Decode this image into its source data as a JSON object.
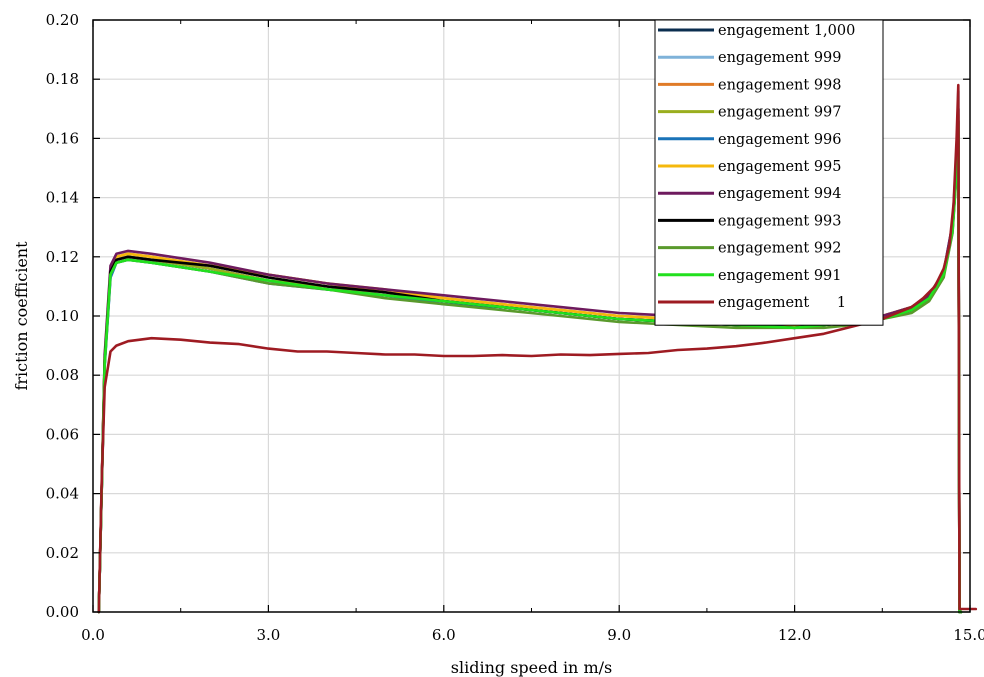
{
  "chart_data": {
    "type": "line",
    "xlabel": "sliding speed in m/s",
    "ylabel": "friction coefficient",
    "xlim": [
      0,
      15
    ],
    "ylim": [
      0,
      0.2
    ],
    "xticks": [
      0,
      3,
      6,
      9,
      12,
      15
    ],
    "yticks": [
      0,
      0.02,
      0.04,
      0.06,
      0.08,
      0.1,
      0.12,
      0.14,
      0.16,
      0.18,
      0.2
    ],
    "xtick_labels": [
      "0.0",
      "3.0",
      "6.0",
      "9.0",
      "12.0",
      "15.0"
    ],
    "ytick_labels": [
      "0.00",
      "0.02",
      "0.04",
      "0.06",
      "0.08",
      "0.10",
      "0.12",
      "0.14",
      "0.16",
      "0.18",
      "0.20"
    ],
    "grid": true,
    "legend_position": "top-right",
    "series": [
      {
        "name": "engagement 1,000",
        "color": "#0b2e4f",
        "x": [
          0.1,
          0.2,
          0.3,
          0.4,
          0.6,
          1,
          2,
          3,
          4,
          5,
          6,
          7,
          8,
          9,
          10,
          11,
          12,
          12.5,
          13,
          13.5,
          14,
          14.3,
          14.55,
          14.7,
          14.78,
          14.8,
          14.82,
          14.85
        ],
        "y": [
          0,
          0.085,
          0.114,
          0.119,
          0.12,
          0.119,
          0.116,
          0.112,
          0.109,
          0.107,
          0.105,
          0.103,
          0.101,
          0.099,
          0.098,
          0.097,
          0.097,
          0.097,
          0.098,
          0.1,
          0.103,
          0.107,
          0.115,
          0.13,
          0.155,
          0.17,
          0,
          0
        ]
      },
      {
        "name": "engagement 999",
        "color": "#7fb2d9",
        "x": [
          0.1,
          0.2,
          0.3,
          0.4,
          0.6,
          1,
          2,
          3,
          4,
          5,
          6,
          7,
          8,
          9,
          10,
          11,
          12,
          12.5,
          13,
          13.5,
          14,
          14.3,
          14.55,
          14.7,
          14.78,
          14.8,
          14.82,
          14.85
        ],
        "y": [
          0,
          0.084,
          0.113,
          0.118,
          0.119,
          0.118,
          0.115,
          0.112,
          0.109,
          0.107,
          0.105,
          0.103,
          0.101,
          0.099,
          0.098,
          0.097,
          0.096,
          0.097,
          0.098,
          0.099,
          0.102,
          0.106,
          0.114,
          0.128,
          0.152,
          0.166,
          0,
          0
        ]
      },
      {
        "name": "engagement 998",
        "color": "#e07b28",
        "x": [
          0.1,
          0.2,
          0.3,
          0.4,
          0.6,
          1,
          2,
          3,
          4,
          5,
          6,
          7,
          8,
          9,
          10,
          11,
          12,
          12.5,
          13,
          13.5,
          14,
          14.3,
          14.55,
          14.7,
          14.78,
          14.8,
          14.82,
          14.85
        ],
        "y": [
          0,
          0.086,
          0.116,
          0.12,
          0.121,
          0.12,
          0.117,
          0.114,
          0.111,
          0.108,
          0.106,
          0.104,
          0.102,
          0.1,
          0.099,
          0.098,
          0.097,
          0.098,
          0.099,
          0.1,
          0.103,
          0.107,
          0.115,
          0.13,
          0.153,
          0.168,
          0,
          0
        ]
      },
      {
        "name": "engagement 997",
        "color": "#9aae1e",
        "x": [
          0.1,
          0.2,
          0.3,
          0.4,
          0.6,
          1,
          2,
          3,
          4,
          5,
          6,
          7,
          8,
          9,
          10,
          11,
          12,
          12.5,
          13,
          13.5,
          14,
          14.3,
          14.55,
          14.7,
          14.78,
          14.8,
          14.82,
          14.85
        ],
        "y": [
          0,
          0.084,
          0.114,
          0.119,
          0.12,
          0.119,
          0.116,
          0.112,
          0.11,
          0.107,
          0.105,
          0.103,
          0.101,
          0.099,
          0.098,
          0.097,
          0.096,
          0.097,
          0.098,
          0.1,
          0.102,
          0.106,
          0.114,
          0.129,
          0.152,
          0.165,
          0,
          0
        ]
      },
      {
        "name": "engagement 996",
        "color": "#1a73b8",
        "x": [
          0.1,
          0.2,
          0.3,
          0.4,
          0.6,
          1,
          2,
          3,
          4,
          5,
          6,
          7,
          8,
          9,
          10,
          11,
          12,
          12.5,
          13,
          13.5,
          14,
          14.3,
          14.55,
          14.7,
          14.78,
          14.8,
          14.82,
          14.85
        ],
        "y": [
          0,
          0.083,
          0.113,
          0.118,
          0.119,
          0.118,
          0.115,
          0.111,
          0.109,
          0.107,
          0.104,
          0.103,
          0.101,
          0.099,
          0.098,
          0.097,
          0.096,
          0.097,
          0.098,
          0.099,
          0.102,
          0.106,
          0.115,
          0.131,
          0.158,
          0.176,
          0,
          0
        ]
      },
      {
        "name": "engagement 995",
        "color": "#f5b80c",
        "x": [
          0.1,
          0.2,
          0.3,
          0.4,
          0.6,
          1,
          2,
          3,
          4,
          5,
          6,
          7,
          8,
          9,
          10,
          11,
          12,
          12.5,
          13,
          13.5,
          14,
          14.3,
          14.55,
          14.7,
          14.78,
          14.8,
          14.82,
          14.85
        ],
        "y": [
          0,
          0.086,
          0.116,
          0.12,
          0.121,
          0.12,
          0.117,
          0.114,
          0.111,
          0.109,
          0.106,
          0.104,
          0.102,
          0.1,
          0.099,
          0.098,
          0.097,
          0.098,
          0.099,
          0.1,
          0.103,
          0.107,
          0.115,
          0.13,
          0.154,
          0.168,
          0,
          0
        ]
      },
      {
        "name": "engagement 994",
        "color": "#6e1a5e",
        "x": [
          0.1,
          0.2,
          0.3,
          0.4,
          0.6,
          1,
          2,
          3,
          4,
          5,
          6,
          7,
          8,
          9,
          10,
          11,
          12,
          12.5,
          13,
          13.5,
          14,
          14.3,
          14.55,
          14.7,
          14.78,
          14.8,
          14.82,
          14.85
        ],
        "y": [
          0,
          0.087,
          0.117,
          0.121,
          0.122,
          0.121,
          0.118,
          0.114,
          0.111,
          0.109,
          0.107,
          0.105,
          0.103,
          0.101,
          0.1,
          0.099,
          0.098,
          0.098,
          0.099,
          0.1,
          0.103,
          0.107,
          0.115,
          0.131,
          0.155,
          0.17,
          0,
          0
        ]
      },
      {
        "name": "engagement 993",
        "color": "#000000",
        "x": [
          0.1,
          0.2,
          0.3,
          0.4,
          0.6,
          1,
          2,
          3,
          4,
          5,
          6,
          7,
          8,
          9,
          10,
          11,
          12,
          12.5,
          13,
          13.5,
          14,
          14.3,
          14.55,
          14.7,
          14.78,
          14.8,
          14.82,
          14.85
        ],
        "y": [
          0,
          0.085,
          0.115,
          0.119,
          0.12,
          0.119,
          0.117,
          0.113,
          0.11,
          0.108,
          0.105,
          0.103,
          0.101,
          0.099,
          0.098,
          0.097,
          0.096,
          0.097,
          0.098,
          0.099,
          0.102,
          0.106,
          0.114,
          0.129,
          0.152,
          0.166,
          0,
          0
        ]
      },
      {
        "name": "engagement 992",
        "color": "#5a9a2c",
        "x": [
          0.1,
          0.2,
          0.3,
          0.4,
          0.6,
          1,
          2,
          3,
          4,
          5,
          6,
          7,
          8,
          9,
          10,
          11,
          12,
          12.5,
          13,
          13.5,
          14,
          14.3,
          14.55,
          14.7,
          14.78,
          14.8,
          14.82,
          14.85
        ],
        "y": [
          0,
          0.084,
          0.114,
          0.118,
          0.119,
          0.118,
          0.115,
          0.111,
          0.109,
          0.106,
          0.104,
          0.102,
          0.1,
          0.098,
          0.097,
          0.096,
          0.096,
          0.096,
          0.097,
          0.099,
          0.101,
          0.105,
          0.113,
          0.128,
          0.151,
          0.164,
          0,
          0
        ]
      },
      {
        "name": "engagement 991",
        "color": "#22e01e",
        "x": [
          0.1,
          0.2,
          0.3,
          0.4,
          0.6,
          1,
          2,
          3,
          4,
          5,
          6,
          7,
          8,
          9,
          10,
          11,
          12,
          12.5,
          13,
          13.5,
          14,
          14.3,
          14.55,
          14.7,
          14.78,
          14.8,
          14.82,
          14.85
        ],
        "y": [
          0,
          0.084,
          0.114,
          0.118,
          0.119,
          0.118,
          0.115,
          0.112,
          0.109,
          0.107,
          0.105,
          0.103,
          0.101,
          0.099,
          0.098,
          0.097,
          0.096,
          0.097,
          0.098,
          0.099,
          0.102,
          0.106,
          0.114,
          0.129,
          0.152,
          0.165,
          0,
          0
        ]
      },
      {
        "name": "engagement      1",
        "color": "#9e1b22",
        "x": [
          0.1,
          0.15,
          0.2,
          0.3,
          0.4,
          0.6,
          0.8,
          1,
          1.5,
          2,
          2.5,
          3,
          3.5,
          4,
          4.5,
          5,
          5.5,
          6,
          6.5,
          7,
          7.5,
          8,
          8.5,
          9,
          9.5,
          10,
          10.5,
          11,
          11.5,
          12,
          12.5,
          13,
          13.5,
          14,
          14.2,
          14.4,
          14.55,
          14.65,
          14.72,
          14.77,
          14.8,
          14.82,
          14.84,
          15.0,
          15.1
        ],
        "y": [
          0,
          0.045,
          0.076,
          0.088,
          0.09,
          0.0915,
          0.092,
          0.0925,
          0.092,
          0.091,
          0.0905,
          0.089,
          0.088,
          0.088,
          0.0875,
          0.087,
          0.087,
          0.0865,
          0.0865,
          0.0868,
          0.0865,
          0.087,
          0.0868,
          0.0872,
          0.0875,
          0.0885,
          0.089,
          0.0898,
          0.091,
          0.0925,
          0.094,
          0.0965,
          0.099,
          0.103,
          0.106,
          0.11,
          0.116,
          0.124,
          0.138,
          0.16,
          0.178,
          0.001,
          0.001,
          0.001,
          0.001
        ]
      }
    ]
  }
}
